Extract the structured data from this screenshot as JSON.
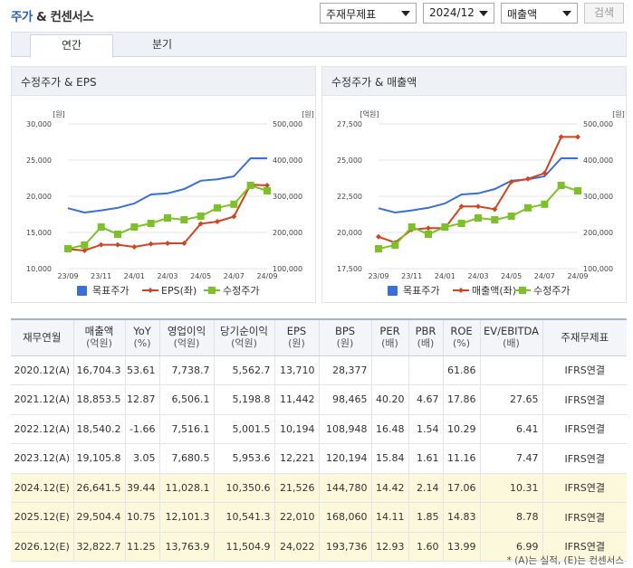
{
  "header": {
    "title_part1": "주가",
    "title_part2": " & 컨센서스",
    "select_basis": "주재무제표",
    "select_period": "2024/12",
    "select_metric": "매출액",
    "search_label": "검색"
  },
  "tabs": [
    {
      "label": "연간"
    },
    {
      "label": "분기"
    }
  ],
  "chart1": {
    "title": "수정주가 & EPS",
    "left_unit": "[원]",
    "right_unit": "[원]",
    "left_ticks": [
      "30,000",
      "25,000",
      "20,000",
      "15,000",
      "10,000"
    ],
    "right_ticks": [
      "500,000",
      "400,000",
      "300,000",
      "200,000",
      "100,000"
    ],
    "x_ticks": [
      "23/09",
      "23/11",
      "24/01",
      "24/03",
      "24/05",
      "24/07",
      "24/09"
    ],
    "legend": [
      "목표주가",
      "EPS(좌)",
      "수정주가"
    ]
  },
  "chart2": {
    "title": "수정주가 & 매출액",
    "left_unit": "[억원]",
    "right_unit": "[원]",
    "left_ticks": [
      "27,500",
      "25,000",
      "22,500",
      "20,000",
      "17,500"
    ],
    "right_ticks": [
      "500,000",
      "400,000",
      "300,000",
      "200,000",
      "100,000"
    ],
    "x_ticks": [
      "23/09",
      "23/11",
      "24/01",
      "24/03",
      "24/05",
      "24/07",
      "24/09"
    ],
    "legend": [
      "목표주가",
      "매출액(좌)",
      "수정주가"
    ]
  },
  "chart_data": [
    {
      "type": "line",
      "title": "수정주가 & EPS",
      "left_axis": {
        "unit": "원",
        "ylim": [
          10000,
          30000
        ]
      },
      "right_axis": {
        "unit": "원",
        "ylim": [
          100000,
          500000
        ]
      },
      "x": [
        "23/09",
        "23/10",
        "23/11",
        "23/12",
        "24/01",
        "24/02",
        "24/03",
        "24/04",
        "24/05",
        "24/06",
        "24/07",
        "24/08",
        "24/09"
      ],
      "series": [
        {
          "name": "목표주가",
          "axis": "right",
          "color": "#3a6fd8",
          "values": [
            267000,
            255000,
            261000,
            268000,
            280000,
            305000,
            308000,
            320000,
            343000,
            347000,
            355000,
            405000,
            405000
          ]
        },
        {
          "name": "EPS(좌)",
          "axis": "left",
          "color": "#d2431f",
          "values": [
            12700,
            12500,
            13300,
            13300,
            13000,
            13400,
            13500,
            13500,
            16200,
            16500,
            17200,
            21600,
            21500
          ]
        },
        {
          "name": "수정주가",
          "axis": "right",
          "color": "#7cc128",
          "values": [
            155000,
            165000,
            215000,
            195000,
            215000,
            225000,
            240000,
            235000,
            245000,
            268000,
            278000,
            330000,
            315000
          ]
        }
      ]
    },
    {
      "type": "line",
      "title": "수정주가 & 매출액",
      "left_axis": {
        "unit": "억원",
        "ylim": [
          17500,
          27500
        ]
      },
      "right_axis": {
        "unit": "원",
        "ylim": [
          100000,
          500000
        ]
      },
      "x": [
        "23/09",
        "23/10",
        "23/11",
        "23/12",
        "24/01",
        "24/02",
        "24/03",
        "24/04",
        "24/05",
        "24/06",
        "24/07",
        "24/08",
        "24/09"
      ],
      "series": [
        {
          "name": "목표주가",
          "axis": "right",
          "color": "#3a6fd8",
          "values": [
            267000,
            255000,
            261000,
            268000,
            280000,
            305000,
            308000,
            320000,
            343000,
            347000,
            355000,
            405000,
            405000
          ]
        },
        {
          "name": "매출액(좌)",
          "axis": "left",
          "color": "#d2431f",
          "values": [
            19700,
            19300,
            20200,
            20300,
            20300,
            21800,
            21800,
            21600,
            23500,
            23700,
            24100,
            26600,
            26600
          ]
        },
        {
          "name": "수정주가",
          "axis": "right",
          "color": "#7cc128",
          "values": [
            155000,
            165000,
            215000,
            195000,
            215000,
            225000,
            240000,
            235000,
            245000,
            268000,
            278000,
            330000,
            315000
          ]
        }
      ]
    }
  ],
  "table": {
    "headers": [
      {
        "l1": "재무연월",
        "l2": ""
      },
      {
        "l1": "매출액",
        "l2": "(억원)"
      },
      {
        "l1": "YoY",
        "l2": "(%)"
      },
      {
        "l1": "영업이익",
        "l2": "(억원)"
      },
      {
        "l1": "당기순이익",
        "l2": "(억원)"
      },
      {
        "l1": "EPS",
        "l2": "(원)"
      },
      {
        "l1": "BPS",
        "l2": "(원)"
      },
      {
        "l1": "PER",
        "l2": "(배)"
      },
      {
        "l1": "PBR",
        "l2": "(배)"
      },
      {
        "l1": "ROE",
        "l2": "(%)"
      },
      {
        "l1": "EV/EBITDA",
        "l2": "(배)"
      },
      {
        "l1": "주재무제표",
        "l2": ""
      }
    ],
    "rows": [
      {
        "est": false,
        "cells": [
          "2020.12(A)",
          "16,704.3",
          "53.61",
          "7,738.7",
          "5,562.7",
          "13,710",
          "28,377",
          "",
          "",
          "61.86",
          "",
          "IFRS연결"
        ]
      },
      {
        "est": false,
        "cells": [
          "2021.12(A)",
          "18,853.5",
          "12.87",
          "6,506.1",
          "5,198.8",
          "11,442",
          "98,465",
          "40.20",
          "4.67",
          "17.86",
          "27.65",
          "IFRS연결"
        ]
      },
      {
        "est": false,
        "cells": [
          "2022.12(A)",
          "18,540.2",
          "-1.66",
          "7,516.1",
          "5,001.5",
          "10,194",
          "108,948",
          "16.48",
          "1.54",
          "10.29",
          "6.41",
          "IFRS연결"
        ]
      },
      {
        "est": false,
        "cells": [
          "2023.12(A)",
          "19,105.8",
          "3.05",
          "7,680.5",
          "5,953.6",
          "12,221",
          "120,194",
          "15.84",
          "1.61",
          "11.16",
          "7.47",
          "IFRS연결"
        ]
      },
      {
        "est": true,
        "cells": [
          "2024.12(E)",
          "26,641.5",
          "39.44",
          "11,028.1",
          "10,350.6",
          "21,526",
          "144,780",
          "14.42",
          "2.14",
          "17.06",
          "10.31",
          "IFRS연결"
        ]
      },
      {
        "est": true,
        "cells": [
          "2025.12(E)",
          "29,504.4",
          "10.75",
          "12,101.3",
          "10,541.3",
          "22,010",
          "168,060",
          "14.11",
          "1.85",
          "14.83",
          "8.78",
          "IFRS연결"
        ]
      },
      {
        "est": true,
        "cells": [
          "2026.12(E)",
          "32,822.7",
          "11.25",
          "13,763.9",
          "11,504.9",
          "24,022",
          "193,736",
          "12.93",
          "1.60",
          "13.99",
          "6.99",
          "IFRS연결"
        ]
      }
    ]
  },
  "footnote": "* (A)는 실적, (E)는 컨센서스"
}
